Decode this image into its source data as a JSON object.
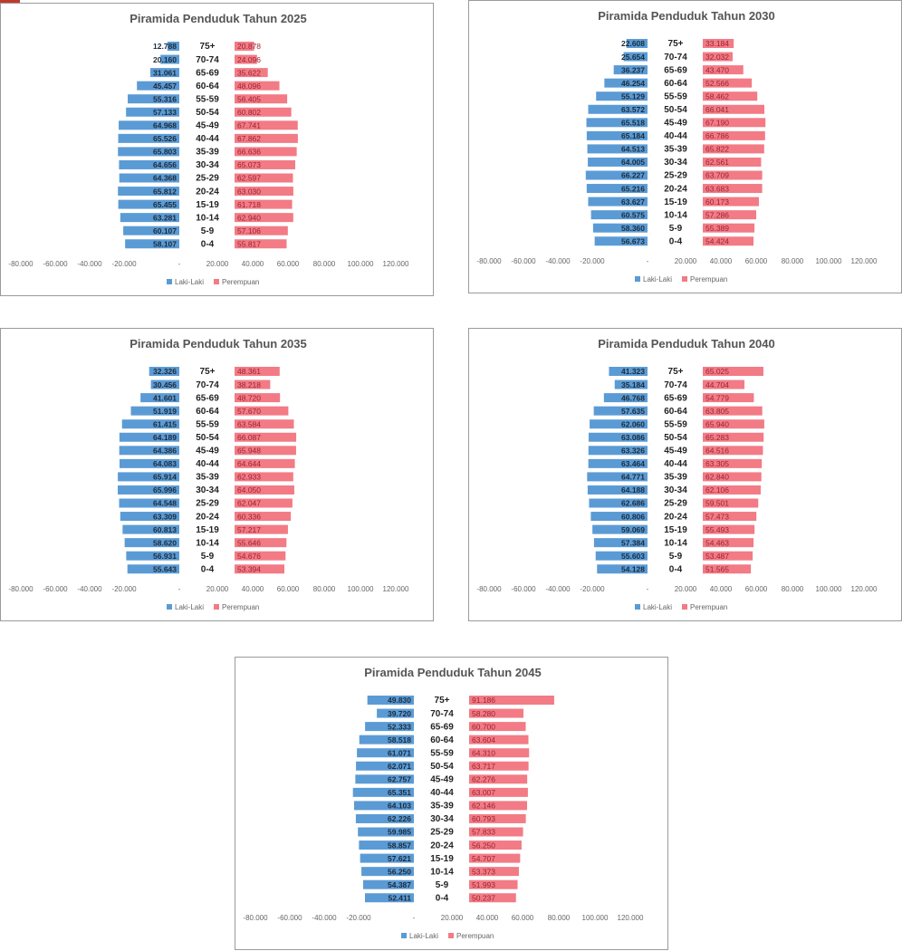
{
  "colors": {
    "male": "#5b9bd5",
    "female": "#f27b86"
  },
  "age_groups": [
    "75+",
    "70-74",
    "65-69",
    "60-64",
    "55-59",
    "50-54",
    "45-49",
    "40-44",
    "35-39",
    "30-34",
    "25-29",
    "20-24",
    "15-19",
    "10-14",
    "5-9",
    "0-4"
  ],
  "axis_ticks": [
    "-80.000",
    "-60.000",
    "-40.000",
    "-20.000",
    "-",
    "20.000",
    "40.000",
    "60.000",
    "80.000",
    "100.000",
    "120.000"
  ],
  "legend": {
    "male": "Laki-Laki",
    "female": "Perempuan"
  },
  "chart_data": [
    {
      "type": "bar",
      "title": "Piramida Penduduk Tahun 2025",
      "categories": [
        "75+",
        "70-74",
        "65-69",
        "60-64",
        "55-59",
        "50-54",
        "45-49",
        "40-44",
        "35-39",
        "30-34",
        "25-29",
        "20-24",
        "15-19",
        "10-14",
        "5-9",
        "0-4"
      ],
      "xlim": [
        -80000,
        120000
      ],
      "series": [
        {
          "name": "Laki-Laki",
          "values": [
            12788,
            20160,
            31061,
            45457,
            55316,
            57133,
            64968,
            65526,
            65803,
            64656,
            64368,
            65812,
            65455,
            63281,
            60107,
            58107
          ],
          "labels": [
            "12.788",
            "20.160",
            "31.061",
            "45.457",
            "55.316",
            "57.133",
            "64.968",
            "65.526",
            "65.803",
            "64.656",
            "64.368",
            "65.812",
            "65.455",
            "63.281",
            "60.107",
            "58.107"
          ]
        },
        {
          "name": "Perempuan",
          "values": [
            20878,
            24096,
            35622,
            48096,
            56405,
            60802,
            67741,
            67862,
            66636,
            65073,
            62597,
            63030,
            61718,
            62940,
            57106,
            55817
          ],
          "labels": [
            "20.878",
            "24.096",
            "35.622",
            "48.096",
            "56.405",
            "60.802",
            "67.741",
            "67.862",
            "66.636",
            "65.073",
            "62.597",
            "63.030",
            "61.718",
            "62.940",
            "57.106",
            "55.817"
          ]
        }
      ]
    },
    {
      "type": "bar",
      "title": "Piramida Penduduk Tahun 2030",
      "categories": [
        "75+",
        "70-74",
        "65-69",
        "60-64",
        "55-59",
        "50-54",
        "45-49",
        "40-44",
        "35-39",
        "30-34",
        "25-29",
        "20-24",
        "15-19",
        "10-14",
        "5-9",
        "0-4"
      ],
      "xlim": [
        -80000,
        120000
      ],
      "series": [
        {
          "name": "Laki-Laki",
          "values": [
            22608,
            25654,
            36237,
            46254,
            55129,
            63572,
            65518,
            65184,
            64513,
            64005,
            66227,
            65216,
            63627,
            60575,
            58360,
            56673
          ],
          "labels": [
            "22.608",
            "25.654",
            "36.237",
            "46.254",
            "55.129",
            "63.572",
            "65.518",
            "65.184",
            "64.513",
            "64.005",
            "66.227",
            "65.216",
            "63.627",
            "60.575",
            "58.360",
            "56.673"
          ]
        },
        {
          "name": "Perempuan",
          "values": [
            33184,
            32032,
            43470,
            52566,
            58462,
            66041,
            67190,
            66786,
            65822,
            62561,
            63709,
            63683,
            60173,
            57286,
            55389,
            54424
          ],
          "labels": [
            "33.184",
            "32.032",
            "43.470",
            "52.566",
            "58.462",
            "66.041",
            "67.190",
            "66.786",
            "65.822",
            "62.561",
            "63.709",
            "63.683",
            "60.173",
            "57.286",
            "55.389",
            "54.424"
          ]
        }
      ]
    },
    {
      "type": "bar",
      "title": "Piramida Penduduk Tahun 2035",
      "categories": [
        "75+",
        "70-74",
        "65-69",
        "60-64",
        "55-59",
        "50-54",
        "45-49",
        "40-44",
        "35-39",
        "30-34",
        "25-29",
        "20-24",
        "15-19",
        "10-14",
        "5-9",
        "0-4"
      ],
      "xlim": [
        -80000,
        120000
      ],
      "series": [
        {
          "name": "Laki-Laki",
          "values": [
            32326,
            30456,
            41601,
            51919,
            61415,
            64189,
            64386,
            64083,
            65914,
            65996,
            64548,
            63309,
            60813,
            58620,
            56931,
            55643
          ],
          "labels": [
            "32.326",
            "30.456",
            "41.601",
            "51.919",
            "61.415",
            "64.189",
            "64.386",
            "64.083",
            "65.914",
            "65.996",
            "64.548",
            "63.309",
            "60.813",
            "58.620",
            "56.931",
            "55.643"
          ]
        },
        {
          "name": "Perempuan",
          "values": [
            48361,
            38218,
            48720,
            57670,
            63584,
            66087,
            65948,
            64644,
            62933,
            64050,
            62047,
            60336,
            57217,
            55646,
            54676,
            53394
          ],
          "labels": [
            "48.361",
            "38.218",
            "48.720",
            "57.670",
            "63.584",
            "66.087",
            "65.948",
            "64.644",
            "62.933",
            "64.050",
            "62.047",
            "60.336",
            "57.217",
            "55.646",
            "54.676",
            "53.394"
          ]
        }
      ]
    },
    {
      "type": "bar",
      "title": "Piramida Penduduk Tahun 2040",
      "categories": [
        "75+",
        "70-74",
        "65-69",
        "60-64",
        "55-59",
        "50-54",
        "45-49",
        "40-44",
        "35-39",
        "30-34",
        "25-29",
        "20-24",
        "15-19",
        "10-14",
        "5-9",
        "0-4"
      ],
      "xlim": [
        -80000,
        120000
      ],
      "series": [
        {
          "name": "Laki-Laki",
          "values": [
            41323,
            35184,
            46768,
            57635,
            62060,
            63086,
            63326,
            63464,
            64771,
            64188,
            62686,
            60806,
            59069,
            57384,
            55603,
            54128
          ],
          "labels": [
            "41.323",
            "35.184",
            "46.768",
            "57.635",
            "62.060",
            "63.086",
            "63.326",
            "63.464",
            "64.771",
            "64.188",
            "62.686",
            "60.806",
            "59.069",
            "57.384",
            "55.603",
            "54.128"
          ]
        },
        {
          "name": "Perempuan",
          "values": [
            65025,
            44704,
            54779,
            63805,
            65940,
            65283,
            64516,
            63305,
            62840,
            62106,
            59501,
            57473,
            55493,
            54463,
            53487,
            51565
          ],
          "labels": [
            "65.025",
            "44.704",
            "54.779",
            "63.805",
            "65.940",
            "65.283",
            "64.516",
            "63.305",
            "62.840",
            "62.106",
            "59.501",
            "57.473",
            "55.493",
            "54.463",
            "53.487",
            "51.565"
          ]
        }
      ]
    },
    {
      "type": "bar",
      "title": "Piramida Penduduk Tahun 2045",
      "categories": [
        "75+",
        "70-74",
        "65-69",
        "60-64",
        "55-59",
        "50-54",
        "45-49",
        "40-44",
        "35-39",
        "30-34",
        "25-29",
        "20-24",
        "15-19",
        "10-14",
        "5-9",
        "0-4"
      ],
      "xlim": [
        -80000,
        120000
      ],
      "series": [
        {
          "name": "Laki-Laki",
          "values": [
            49830,
            39720,
            52333,
            58518,
            61071,
            62071,
            62757,
            65351,
            64103,
            62226,
            59985,
            58857,
            57621,
            56250,
            54387,
            52411
          ],
          "labels": [
            "49.830",
            "39.720",
            "52.333",
            "58.518",
            "61.071",
            "62.071",
            "62.757",
            "65.351",
            "64.103",
            "62.226",
            "59.985",
            "58.857",
            "57.621",
            "56.250",
            "54.387",
            "52.411"
          ]
        },
        {
          "name": "Perempuan",
          "values": [
            91186,
            58280,
            60700,
            63604,
            64310,
            63717,
            62276,
            63007,
            62146,
            60793,
            57833,
            56250,
            54707,
            53373,
            51993,
            50237
          ],
          "labels": [
            "91.186",
            "58.280",
            "60.700",
            "63.604",
            "64.310",
            "63.717",
            "62.276",
            "63.007",
            "62.146",
            "60.793",
            "57.833",
            "56.250",
            "54.707",
            "53.373",
            "51.993",
            "50.237"
          ]
        }
      ]
    }
  ]
}
